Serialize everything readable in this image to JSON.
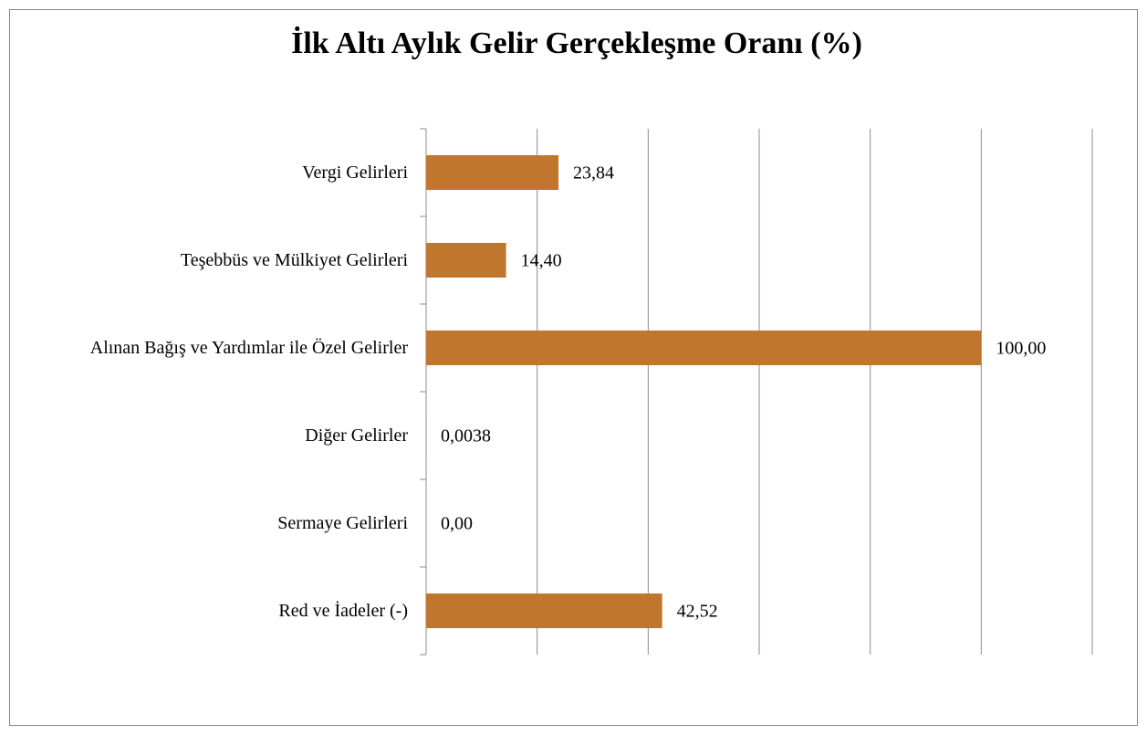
{
  "chart_data": {
    "type": "bar",
    "orientation": "horizontal",
    "title": "İlk Altı Aylık Gelir Gerçekleşme Oranı (%)",
    "categories": [
      "Vergi Gelirleri",
      "Teşebbüs ve Mülkiyet Gelirleri",
      "Alınan Bağış ve Yardımlar ile Özel Gelirler",
      "Diğer Gelirler",
      "Sermaye Gelirleri",
      "Red ve İadeler (-)"
    ],
    "values": [
      23.84,
      14.4,
      100,
      0.0038,
      0,
      42.52
    ],
    "value_labels": [
      "23,84",
      "14,40",
      "100,00",
      "0,0038",
      "0,00",
      "42,52"
    ],
    "color": "#c0762c",
    "xlim": [
      0,
      120
    ],
    "xticks": [
      0,
      20,
      40,
      60,
      80,
      100,
      120
    ],
    "grid": true
  }
}
